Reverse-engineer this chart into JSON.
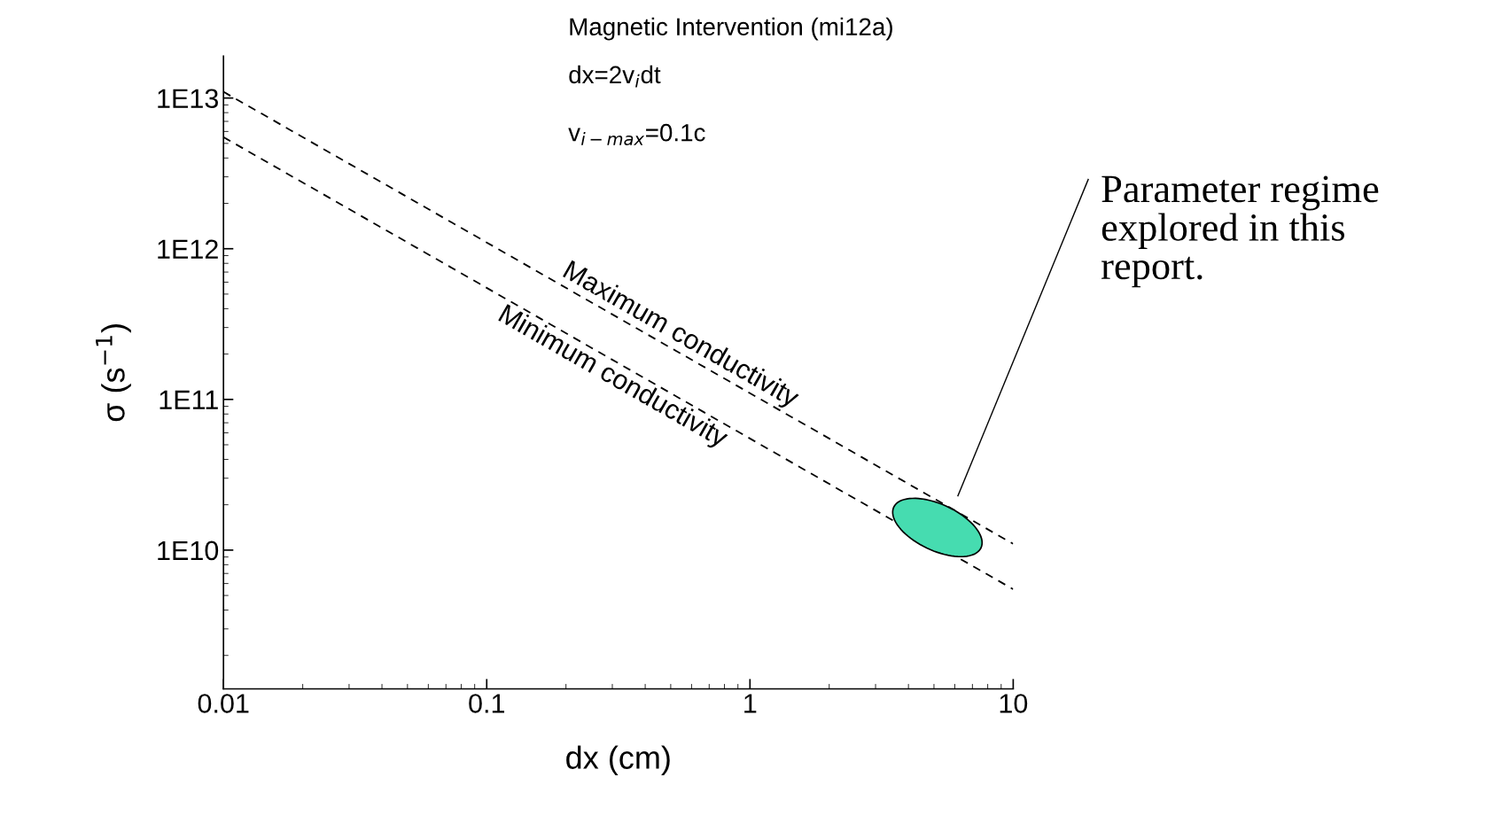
{
  "chart_data": {
    "type": "line",
    "title": "Magnetic Intervention (mi12a)",
    "xlabel": "dx (cm)",
    "ylabel": "σ (s$^{−1}$)",
    "log": "xy",
    "x": [
      0.01,
      10
    ],
    "series": [
      {
        "name": "Maximum conductivity",
        "color": "#000000",
        "values": [
          11000000000000.0,
          11000000000.0
        ]
      },
      {
        "name": "Minimum conductivity",
        "color": "#000000",
        "values": [
          5500000000000.0,
          5500000000.0
        ]
      }
    ],
    "line_style": "dashed",
    "marker": "none",
    "legend": false,
    "grid": false,
    "xlim": [
      0.01,
      10
    ],
    "ylim": [
      1200000000.0,
      19000000000000.0
    ],
    "xticks": [
      0.01,
      0.1,
      1,
      10
    ],
    "yticks": [
      {
        "value": 10000000000.0,
        "label": "1E10"
      },
      {
        "value": 100000000000.0,
        "label": "1E11"
      },
      {
        "value": 1000000000000.0,
        "label": "1E12"
      },
      {
        "value": 10000000000000.0,
        "label": "1E13"
      }
    ],
    "annotations": [
      "dx=2v$_{i}$dt",
      "v$_{i−max}$=0.1c",
      "Parameter regime\nexplored in this\nreport."
    ]
  }
}
